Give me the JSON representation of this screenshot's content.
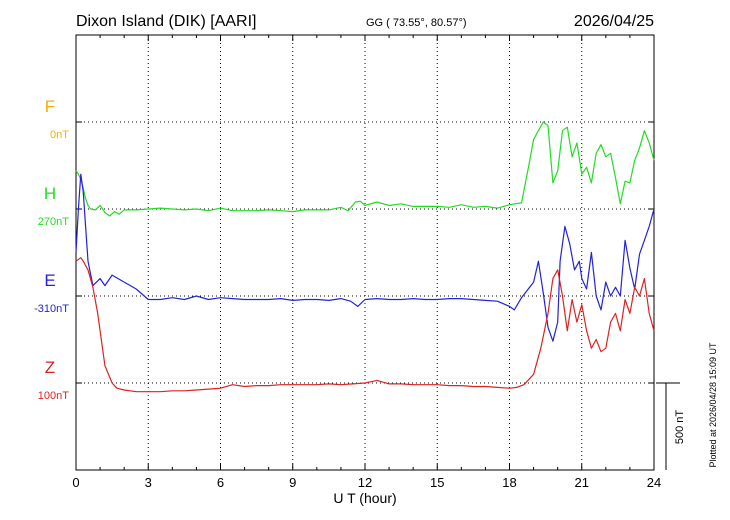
{
  "header": {
    "station": "Dixon Island (DIK)  [AARI]",
    "coords": "GG ( 73.55°,  80.57°)",
    "date": "2026/04/25"
  },
  "footer": {
    "plotted": "Plotted at 2026/04/28 15:09 UT"
  },
  "chart_data": {
    "type": "line",
    "title": "Dixon Island (DIK)  [AARI]",
    "xlabel": "U T (hour)",
    "ylabel": "",
    "xlim": [
      0,
      24
    ],
    "xticks": [
      0,
      3,
      6,
      9,
      12,
      15,
      18,
      21,
      24
    ],
    "xtick_labels": [
      "0",
      "3",
      "6",
      "9",
      "12",
      "15",
      "18",
      "21",
      "24"
    ],
    "grid": true,
    "scale_bar": {
      "value_nT": 500,
      "label": "500 nT"
    },
    "series": [
      {
        "name": "F",
        "baseline_label": "0nT",
        "color": "#f2b000",
        "slot": 1,
        "x": [],
        "y": []
      },
      {
        "name": "H",
        "baseline_label": "270nT",
        "color": "#22dd22",
        "slot": 2,
        "x": [
          0,
          0.1,
          0.2,
          0.3,
          0.4,
          0.5,
          0.6,
          0.8,
          1,
          1.2,
          1.4,
          1.6,
          1.8,
          2,
          2.5,
          3,
          3.5,
          4,
          4.5,
          5,
          5.5,
          6,
          6.5,
          7,
          7.5,
          8,
          8.5,
          9,
          9.5,
          10,
          10.5,
          11,
          11.3,
          11.6,
          11.8,
          12,
          12.5,
          13,
          13.5,
          14,
          14.5,
          15,
          15.5,
          16,
          16.5,
          17,
          17.5,
          18,
          18.5,
          18.8,
          19,
          19.2,
          19.4,
          19.6,
          19.8,
          20,
          20.2,
          20.4,
          20.6,
          20.8,
          21,
          21.2,
          21.4,
          21.6,
          21.8,
          22,
          22.2,
          22.4,
          22.6,
          22.8,
          23,
          23.2,
          23.4,
          23.6,
          23.8,
          24
        ],
        "y": [
          220,
          200,
          170,
          120,
          60,
          20,
          0,
          -5,
          20,
          -20,
          -40,
          -15,
          -30,
          -5,
          -5,
          0,
          5,
          0,
          -5,
          0,
          -10,
          5,
          -10,
          -10,
          -10,
          -5,
          -10,
          -15,
          -5,
          -5,
          -5,
          10,
          -10,
          40,
          45,
          20,
          40,
          20,
          30,
          15,
          15,
          15,
          10,
          25,
          10,
          15,
          5,
          25,
          35,
          250,
          400,
          450,
          500,
          480,
          150,
          220,
          450,
          470,
          300,
          380,
          200,
          240,
          150,
          320,
          370,
          300,
          320,
          180,
          30,
          160,
          150,
          280,
          350,
          450,
          380,
          280
        ]
      },
      {
        "name": "E",
        "baseline_label": "-310nT",
        "color": "#2222dd",
        "slot": 3,
        "x": [
          0,
          0.1,
          0.2,
          0.3,
          0.4,
          0.5,
          0.7,
          1,
          1.2,
          1.5,
          2,
          2.5,
          3,
          3.5,
          4,
          4.5,
          5,
          5.5,
          6,
          6.5,
          7,
          7.5,
          8,
          8.5,
          9,
          9.5,
          10,
          10.5,
          11,
          11.4,
          11.7,
          12,
          12.5,
          13,
          13.5,
          14,
          14.5,
          15,
          15.5,
          16,
          16.5,
          17,
          17.5,
          18,
          18.2,
          18.5,
          19,
          19.2,
          19.4,
          19.6,
          19.8,
          20,
          20.1,
          20.3,
          20.5,
          20.7,
          20.9,
          21,
          21.2,
          21.4,
          21.6,
          21.8,
          22,
          22.2,
          22.4,
          22.6,
          22.8,
          23,
          23.2,
          23.4,
          23.6,
          23.8,
          24
        ],
        "y": [
          250,
          500,
          700,
          600,
          400,
          200,
          60,
          100,
          60,
          120,
          80,
          40,
          -20,
          -20,
          -10,
          -20,
          0,
          -20,
          -10,
          -15,
          -20,
          -20,
          -20,
          -15,
          -25,
          -20,
          -20,
          -25,
          -15,
          -30,
          -60,
          -20,
          -15,
          -20,
          -20,
          -15,
          -20,
          -20,
          -15,
          -15,
          -20,
          -25,
          -30,
          -60,
          -80,
          -10,
          80,
          200,
          20,
          -180,
          -260,
          -150,
          200,
          400,
          300,
          150,
          200,
          100,
          40,
          250,
          0,
          -80,
          80,
          0,
          50,
          0,
          320,
          160,
          40,
          240,
          320,
          400,
          500
        ]
      },
      {
        "name": "Z",
        "baseline_label": "100nT",
        "color": "#dd2222",
        "slot": 4,
        "x": [
          0,
          0.2,
          0.3,
          0.5,
          0.7,
          0.9,
          1,
          1.2,
          1.5,
          1.7,
          2,
          2.5,
          3,
          3.5,
          4,
          4.5,
          5,
          5.5,
          6,
          6.5,
          7,
          7.5,
          8,
          8.5,
          9,
          9.5,
          10,
          10.5,
          11,
          11.5,
          12,
          12.5,
          13,
          13.5,
          14,
          14.5,
          15,
          15.5,
          16,
          16.5,
          17,
          17.5,
          18,
          18.3,
          18.6,
          19,
          19.3,
          19.6,
          19.8,
          20,
          20.2,
          20.4,
          20.6,
          20.8,
          21,
          21.2,
          21.4,
          21.6,
          21.8,
          22,
          22.2,
          22.4,
          22.6,
          22.8,
          23,
          23.2,
          23.4,
          23.6,
          23.8,
          24
        ],
        "y": [
          700,
          720,
          700,
          650,
          550,
          400,
          300,
          100,
          0,
          -30,
          -40,
          -50,
          -50,
          -50,
          -45,
          -45,
          -40,
          -35,
          -30,
          -10,
          -20,
          -15,
          -15,
          -10,
          -10,
          -10,
          -10,
          -5,
          -10,
          -5,
          0,
          15,
          -5,
          -5,
          -10,
          -10,
          -10,
          -15,
          -15,
          -20,
          -20,
          -25,
          -30,
          -25,
          -10,
          50,
          200,
          400,
          600,
          650,
          500,
          300,
          480,
          350,
          450,
          300,
          200,
          250,
          180,
          200,
          350,
          400,
          300,
          480,
          400,
          550,
          500,
          600,
          400,
          300
        ]
      }
    ]
  }
}
